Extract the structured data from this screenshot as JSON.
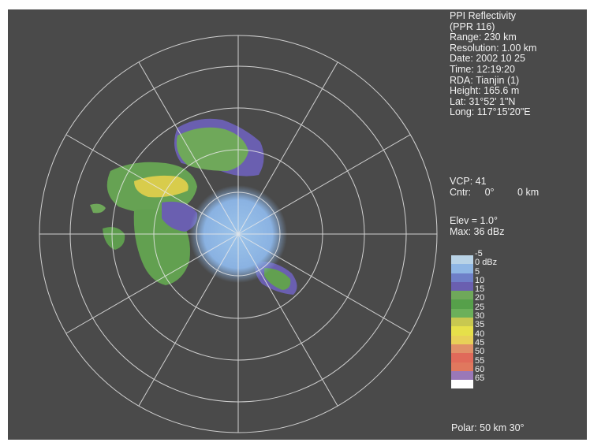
{
  "info": {
    "lines": [
      "PPI Reflectivity",
      "(PPR 116)",
      "Range: 230 km",
      "Resolution: 1.00 km",
      "Date: 2002 10 25",
      "Time: 12:19:20",
      "RDA: Tianjin (1)",
      "Height: 165.6 m",
      "Lat:  31°52' 1\"N",
      "Long: 117°15'20\"E"
    ]
  },
  "vcp": {
    "label": "VCP:",
    "value": "41",
    "cntr_label": "Cntr:",
    "cntr_angle": "0°",
    "cntr_dist": "0 km"
  },
  "elev": {
    "elev_text": "Elev = 1.0°",
    "max_text": "Max: 36 dBz"
  },
  "colorbar": {
    "unit": "dBz",
    "labels": [
      "-5",
      "0",
      "5",
      "10",
      "15",
      "20",
      "25",
      "30",
      "35",
      "40",
      "45",
      "50",
      "55",
      "60",
      "65"
    ],
    "colors": [
      "#b9d3e6",
      "#8fb6e4",
      "#6f7fc8",
      "#6a5fb0",
      "#6fa85a",
      "#56a04a",
      "#6bb05a",
      "#c8c850",
      "#e6e04a",
      "#e8d058",
      "#e09068",
      "#e06a5a",
      "#e0785e",
      "#9a78b8",
      "#ffffff"
    ]
  },
  "polar": {
    "text": "Polar:  50 km 30°"
  },
  "radar": {
    "rings_km": [
      50,
      100,
      150,
      200,
      230
    ],
    "spoke_step_deg": 30
  }
}
